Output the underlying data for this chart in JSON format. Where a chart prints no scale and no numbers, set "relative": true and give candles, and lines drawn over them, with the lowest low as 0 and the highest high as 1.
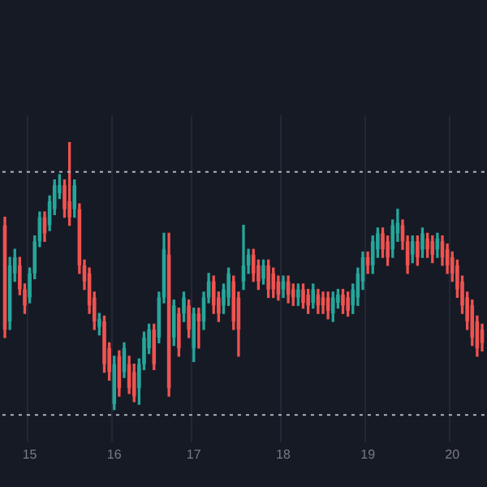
{
  "chart_data": {
    "type": "candlestick",
    "relative": true,
    "grid": "x",
    "categories": [
      null,
      null,
      null,
      null,
      null,
      "15",
      null,
      null,
      null,
      null,
      null,
      null,
      null,
      null,
      null,
      null,
      null,
      null,
      null,
      null,
      null,
      null,
      "16",
      null,
      null,
      null,
      null,
      null,
      null,
      null,
      null,
      null,
      null,
      null,
      null,
      null,
      null,
      null,
      "17",
      null,
      null,
      null,
      null,
      null,
      null,
      null,
      null,
      null,
      null,
      null,
      null,
      null,
      null,
      null,
      null,
      null,
      "18",
      null,
      null,
      null,
      null,
      null,
      null,
      null,
      null,
      null,
      null,
      null,
      null,
      null,
      null,
      null,
      null,
      "19",
      null,
      null,
      null,
      null,
      null,
      null,
      null,
      null,
      null,
      null,
      null,
      null,
      null,
      null,
      null,
      null,
      "20",
      null,
      null,
      null,
      null,
      null,
      null
    ],
    "ohlc": [
      [
        0.69,
        0.72,
        0.27,
        0.3
      ],
      [
        0.33,
        0.57,
        0.3,
        0.54
      ],
      [
        0.51,
        0.6,
        0.48,
        0.57
      ],
      [
        0.54,
        0.57,
        0.43,
        0.45
      ],
      [
        0.45,
        0.47,
        0.36,
        0.39
      ],
      [
        0.42,
        0.53,
        0.4,
        0.51
      ],
      [
        0.51,
        0.65,
        0.49,
        0.63
      ],
      [
        0.63,
        0.74,
        0.61,
        0.72
      ],
      [
        0.72,
        0.74,
        0.63,
        0.66
      ],
      [
        0.69,
        0.8,
        0.67,
        0.78
      ],
      [
        0.75,
        0.86,
        0.73,
        0.84
      ],
      [
        0.81,
        0.88,
        0.79,
        0.84
      ],
      [
        0.84,
        0.86,
        0.72,
        0.75
      ],
      [
        0.78,
        1.0,
        0.69,
        0.72
      ],
      [
        0.75,
        0.86,
        0.72,
        0.84
      ],
      [
        0.75,
        0.77,
        0.51,
        0.54
      ],
      [
        0.54,
        0.56,
        0.45,
        0.48
      ],
      [
        0.51,
        0.53,
        0.36,
        0.39
      ],
      [
        0.42,
        0.44,
        0.3,
        0.33
      ],
      [
        0.31,
        0.36,
        0.28,
        0.34
      ],
      [
        0.33,
        0.35,
        0.14,
        0.17
      ],
      [
        0.23,
        0.25,
        0.11,
        0.14
      ],
      [
        0.02,
        0.2,
        0.0,
        0.17
      ],
      [
        0.2,
        0.22,
        0.05,
        0.08
      ],
      [
        0.14,
        0.25,
        0.12,
        0.23
      ],
      [
        0.17,
        0.2,
        0.06,
        0.08
      ],
      [
        0.14,
        0.17,
        0.03,
        0.05
      ],
      [
        0.08,
        0.19,
        0.02,
        0.17
      ],
      [
        0.17,
        0.29,
        0.15,
        0.27
      ],
      [
        0.23,
        0.32,
        0.21,
        0.3
      ],
      [
        0.3,
        0.32,
        0.15,
        0.17
      ],
      [
        0.27,
        0.44,
        0.25,
        0.42
      ],
      [
        0.42,
        0.66,
        0.4,
        0.6
      ],
      [
        0.58,
        0.66,
        0.05,
        0.08
      ],
      [
        0.27,
        0.41,
        0.24,
        0.39
      ],
      [
        0.36,
        0.38,
        0.2,
        0.23
      ],
      [
        0.36,
        0.44,
        0.33,
        0.42
      ],
      [
        0.39,
        0.41,
        0.27,
        0.3
      ],
      [
        0.23,
        0.38,
        0.18,
        0.36
      ],
      [
        0.36,
        0.38,
        0.23,
        0.33
      ],
      [
        0.33,
        0.44,
        0.3,
        0.42
      ],
      [
        0.42,
        0.51,
        0.4,
        0.48
      ],
      [
        0.48,
        0.5,
        0.36,
        0.39
      ],
      [
        0.42,
        0.44,
        0.33,
        0.36
      ],
      [
        0.39,
        0.47,
        0.36,
        0.45
      ],
      [
        0.42,
        0.53,
        0.39,
        0.51
      ],
      [
        0.48,
        0.5,
        0.3,
        0.33
      ],
      [
        0.42,
        0.44,
        0.2,
        0.3
      ],
      [
        0.48,
        0.69,
        0.45,
        0.54
      ],
      [
        0.54,
        0.6,
        0.51,
        0.58
      ],
      [
        0.58,
        0.6,
        0.48,
        0.51
      ],
      [
        0.54,
        0.56,
        0.45,
        0.48
      ],
      [
        0.49,
        0.56,
        0.47,
        0.54
      ],
      [
        0.54,
        0.56,
        0.42,
        0.45
      ],
      [
        0.51,
        0.53,
        0.42,
        0.45
      ],
      [
        0.48,
        0.5,
        0.41,
        0.43
      ],
      [
        0.45,
        0.5,
        0.42,
        0.48
      ],
      [
        0.48,
        0.5,
        0.4,
        0.43
      ],
      [
        0.45,
        0.47,
        0.39,
        0.42
      ],
      [
        0.42,
        0.47,
        0.39,
        0.45
      ],
      [
        0.45,
        0.47,
        0.38,
        0.4
      ],
      [
        0.43,
        0.45,
        0.36,
        0.39
      ],
      [
        0.4,
        0.47,
        0.38,
        0.45
      ],
      [
        0.43,
        0.45,
        0.36,
        0.39
      ],
      [
        0.42,
        0.44,
        0.36,
        0.39
      ],
      [
        0.42,
        0.44,
        0.34,
        0.37
      ],
      [
        0.36,
        0.44,
        0.33,
        0.42
      ],
      [
        0.4,
        0.45,
        0.38,
        0.43
      ],
      [
        0.43,
        0.45,
        0.36,
        0.39
      ],
      [
        0.42,
        0.44,
        0.35,
        0.37
      ],
      [
        0.39,
        0.47,
        0.36,
        0.45
      ],
      [
        0.42,
        0.53,
        0.39,
        0.51
      ],
      [
        0.48,
        0.59,
        0.45,
        0.57
      ],
      [
        0.57,
        0.59,
        0.51,
        0.54
      ],
      [
        0.54,
        0.65,
        0.51,
        0.63
      ],
      [
        0.6,
        0.68,
        0.57,
        0.66
      ],
      [
        0.66,
        0.68,
        0.57,
        0.6
      ],
      [
        0.63,
        0.65,
        0.54,
        0.57
      ],
      [
        0.6,
        0.71,
        0.57,
        0.69
      ],
      [
        0.66,
        0.75,
        0.63,
        0.7
      ],
      [
        0.69,
        0.71,
        0.6,
        0.63
      ],
      [
        0.63,
        0.65,
        0.51,
        0.54
      ],
      [
        0.58,
        0.65,
        0.55,
        0.63
      ],
      [
        0.63,
        0.65,
        0.54,
        0.57
      ],
      [
        0.6,
        0.68,
        0.57,
        0.66
      ],
      [
        0.64,
        0.66,
        0.57,
        0.6
      ],
      [
        0.63,
        0.65,
        0.55,
        0.58
      ],
      [
        0.6,
        0.66,
        0.57,
        0.64
      ],
      [
        0.63,
        0.65,
        0.54,
        0.57
      ],
      [
        0.6,
        0.62,
        0.51,
        0.54
      ],
      [
        0.57,
        0.59,
        0.48,
        0.51
      ],
      [
        0.54,
        0.56,
        0.42,
        0.45
      ],
      [
        0.48,
        0.5,
        0.36,
        0.39
      ],
      [
        0.42,
        0.44,
        0.3,
        0.33
      ],
      [
        0.39,
        0.41,
        0.24,
        0.27
      ],
      [
        0.33,
        0.35,
        0.2,
        0.23
      ],
      [
        0.3,
        0.32,
        0.22,
        0.25
      ]
    ],
    "colors": [
      "#ef5350",
      "#26a69a",
      "#26a69a",
      "#ef5350",
      "#ef5350",
      "#26a69a",
      "#26a69a",
      "#26a69a",
      "#ef5350",
      "#26a69a",
      "#26a69a",
      "#26a69a",
      "#ef5350",
      "#ef5350",
      "#26a69a",
      "#ef5350",
      "#ef5350",
      "#ef5350",
      "#ef5350",
      "#26a69a",
      "#ef5350",
      "#ef5350",
      "#26a69a",
      "#ef5350",
      "#26a69a",
      "#ef5350",
      "#ef5350",
      "#26a69a",
      "#26a69a",
      "#26a69a",
      "#ef5350",
      "#26a69a",
      "#26a69a",
      "#ef5350",
      "#26a69a",
      "#ef5350",
      "#26a69a",
      "#ef5350",
      "#26a69a",
      "#ef5350",
      "#26a69a",
      "#26a69a",
      "#ef5350",
      "#ef5350",
      "#26a69a",
      "#26a69a",
      "#ef5350",
      "#ef5350",
      "#26a69a",
      "#26a69a",
      "#ef5350",
      "#ef5350",
      "#26a69a",
      "#ef5350",
      "#ef5350",
      "#ef5350",
      "#26a69a",
      "#ef5350",
      "#ef5350",
      "#26a69a",
      "#ef5350",
      "#ef5350",
      "#26a69a",
      "#ef5350",
      "#ef5350",
      "#ef5350",
      "#26a69a",
      "#26a69a",
      "#ef5350",
      "#ef5350",
      "#26a69a",
      "#26a69a",
      "#26a69a",
      "#ef5350",
      "#26a69a",
      "#26a69a",
      "#ef5350",
      "#ef5350",
      "#26a69a",
      "#26a69a",
      "#ef5350",
      "#ef5350",
      "#26a69a",
      "#ef5350",
      "#26a69a",
      "#ef5350",
      "#ef5350",
      "#26a69a",
      "#ef5350",
      "#ef5350",
      "#ef5350",
      "#ef5350",
      "#ef5350",
      "#ef5350",
      "#ef5350",
      "#ef5350",
      "#ef5350"
    ],
    "ref_lines": [
      {
        "axis": "y",
        "value": 0.89,
        "color": "#b2b5be",
        "line_style": "dotted"
      },
      {
        "axis": "y",
        "value": -0.02,
        "color": "#b2b5be",
        "line_style": "dotted"
      }
    ]
  }
}
